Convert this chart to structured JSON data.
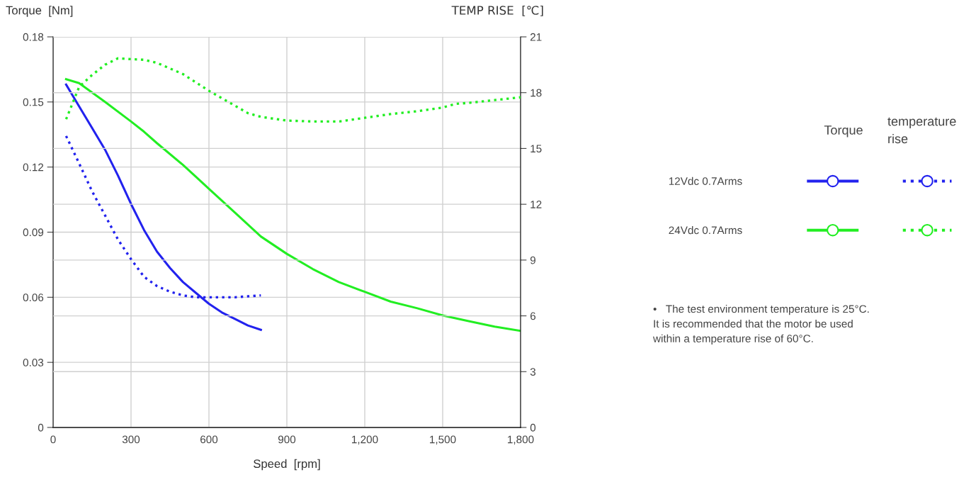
{
  "chart_data": {
    "type": "line",
    "xlabel": "Speed  [rpm]",
    "ylabel": "Torque  [Nm]",
    "y2label": "TEMP RISE  [℃]",
    "xlim": [
      0,
      1800
    ],
    "xticks": [
      0,
      300,
      600,
      {
        "value": 900,
        "label": "900"
      },
      {
        "value": 1200,
        "label": "1,200"
      },
      {
        "value": 1500,
        "label": "1,500"
      },
      {
        "value": 1800,
        "label": "1,800"
      }
    ],
    "ylim": [
      0,
      0.18
    ],
    "yticks": [
      0,
      0.03,
      0.06,
      0.09,
      0.12,
      0.15,
      0.18
    ],
    "y2lim": [
      0,
      21
    ],
    "y2ticks": [
      0,
      3,
      6,
      9,
      12,
      15,
      18,
      21
    ],
    "grid": true,
    "legend": "right",
    "annotations": [
      "Torque",
      "temperature\nrise",
      "•   The test environment temperature is 25°C.\nIt is recommended that the motor be used\nwithin a temperature rise of 60°C."
    ],
    "series": [
      {
        "name": "12Vdc 0.7Arms",
        "color": "#2222ee",
        "line_style": "solid",
        "x": [
          50,
          100,
          150,
          200,
          250,
          300,
          350,
          400,
          450,
          500,
          550,
          600,
          650,
          700,
          750,
          800
        ],
        "values": [
          0.158,
          0.148,
          0.138,
          0.128,
          0.116,
          0.103,
          0.091,
          0.081,
          0.0735,
          0.067,
          0.062,
          0.057,
          0.053,
          0.05,
          0.047,
          0.045
        ]
      },
      {
        "name": "24Vdc 0.7Arms",
        "color": "#22ee22",
        "line_style": "solid",
        "x": [
          50,
          100,
          200,
          300,
          350,
          400,
          500,
          600,
          700,
          800,
          900,
          1000,
          1100,
          1200,
          1300,
          1400,
          1500,
          1600,
          1700,
          1800
        ],
        "values": [
          0.1605,
          0.1587,
          0.15,
          0.141,
          0.1363,
          0.131,
          0.121,
          0.11,
          0.099,
          0.088,
          0.08,
          0.073,
          0.067,
          0.0625,
          0.058,
          0.055,
          0.0516,
          0.049,
          0.0465,
          0.0445
        ]
      },
      {
        "color": "#2222ee",
        "line_style": "dotted",
        "axis": "y2",
        "x": [
          50,
          100,
          150,
          200,
          250,
          300,
          350,
          400,
          450,
          500,
          550,
          600,
          650,
          700,
          750,
          800
        ],
        "values": [
          15.67,
          14.2,
          12.7,
          11.4,
          10.1,
          9.05,
          8.1,
          7.6,
          7.3,
          7.1,
          7.0,
          7.0,
          7.0,
          7.0,
          7.05,
          7.1
        ]
      },
      {
        "color": "#22ee22",
        "line_style": "dotted",
        "axis": "y2",
        "x": [
          50,
          100,
          150,
          200,
          250,
          300,
          350,
          400,
          450,
          500,
          600,
          700,
          750,
          800,
          900,
          1000,
          1100,
          1200,
          1300,
          1400,
          1500,
          1550,
          1600,
          1700,
          1800
        ],
        "values": [
          16.57,
          18.3,
          18.95,
          19.5,
          19.85,
          19.8,
          19.77,
          19.6,
          19.3,
          19.0,
          18.1,
          17.3,
          16.9,
          16.7,
          16.5,
          16.45,
          16.45,
          16.65,
          16.85,
          17.0,
          17.2,
          17.4,
          17.45,
          17.6,
          17.75
        ]
      }
    ]
  }
}
